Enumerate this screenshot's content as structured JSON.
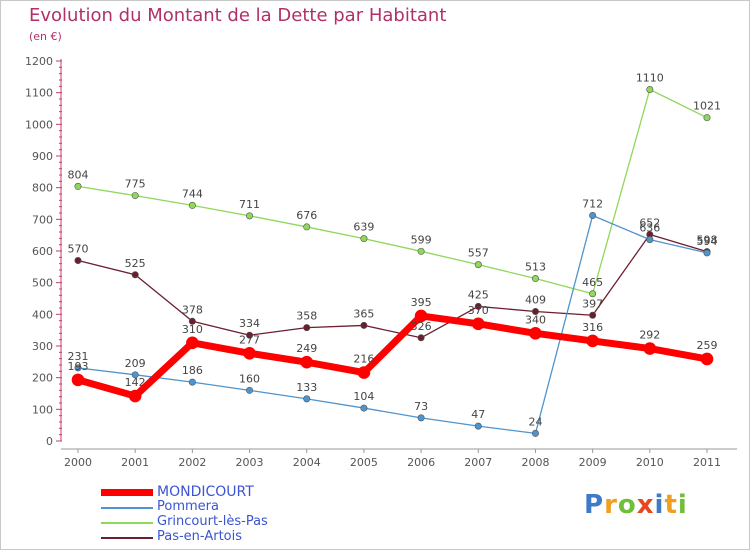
{
  "title": "Evolution du Montant de la Dette par Habitant",
  "unit": "(en €)",
  "logo": {
    "text": "Proxiti",
    "letters": [
      "P",
      "r",
      "o",
      "x",
      "i",
      "t",
      "i"
    ],
    "colors": [
      "#3e7ac8",
      "#f0a020",
      "#6fbf3a",
      "#e84820",
      "#3e7ac8",
      "#f0a020",
      "#6fbf3a"
    ]
  },
  "chart_data": {
    "type": "line",
    "x": [
      "2000",
      "2001",
      "2002",
      "2003",
      "2004",
      "2005",
      "2006",
      "2007",
      "2008",
      "2009",
      "2010",
      "2011"
    ],
    "ylim": [
      0,
      1200
    ],
    "yticks": [
      0,
      100,
      200,
      300,
      400,
      500,
      600,
      700,
      800,
      900,
      1000,
      1100,
      1200
    ],
    "grid": false,
    "legend_position": "bottom-left",
    "series": [
      {
        "name": "MONDICOURT",
        "color": "#ff0000",
        "emphasis": true,
        "values": [
          193,
          142,
          310,
          277,
          249,
          216,
          395,
          370,
          340,
          316,
          292,
          259
        ]
      },
      {
        "name": "Pommera",
        "color": "#4f94cd",
        "emphasis": false,
        "values": [
          231,
          209,
          186,
          160,
          133,
          104,
          73,
          47,
          24,
          712,
          636,
          594
        ]
      },
      {
        "name": "Grincourt-lès-Pas",
        "color": "#8ed85a",
        "emphasis": false,
        "values": [
          804,
          775,
          744,
          711,
          676,
          639,
          599,
          557,
          513,
          465,
          1110,
          1021
        ]
      },
      {
        "name": "Pas-en-Artois",
        "color": "#6b1e2e",
        "emphasis": false,
        "values": [
          570,
          525,
          378,
          334,
          358,
          365,
          326,
          425,
          409,
          397,
          652,
          598
        ]
      }
    ]
  }
}
